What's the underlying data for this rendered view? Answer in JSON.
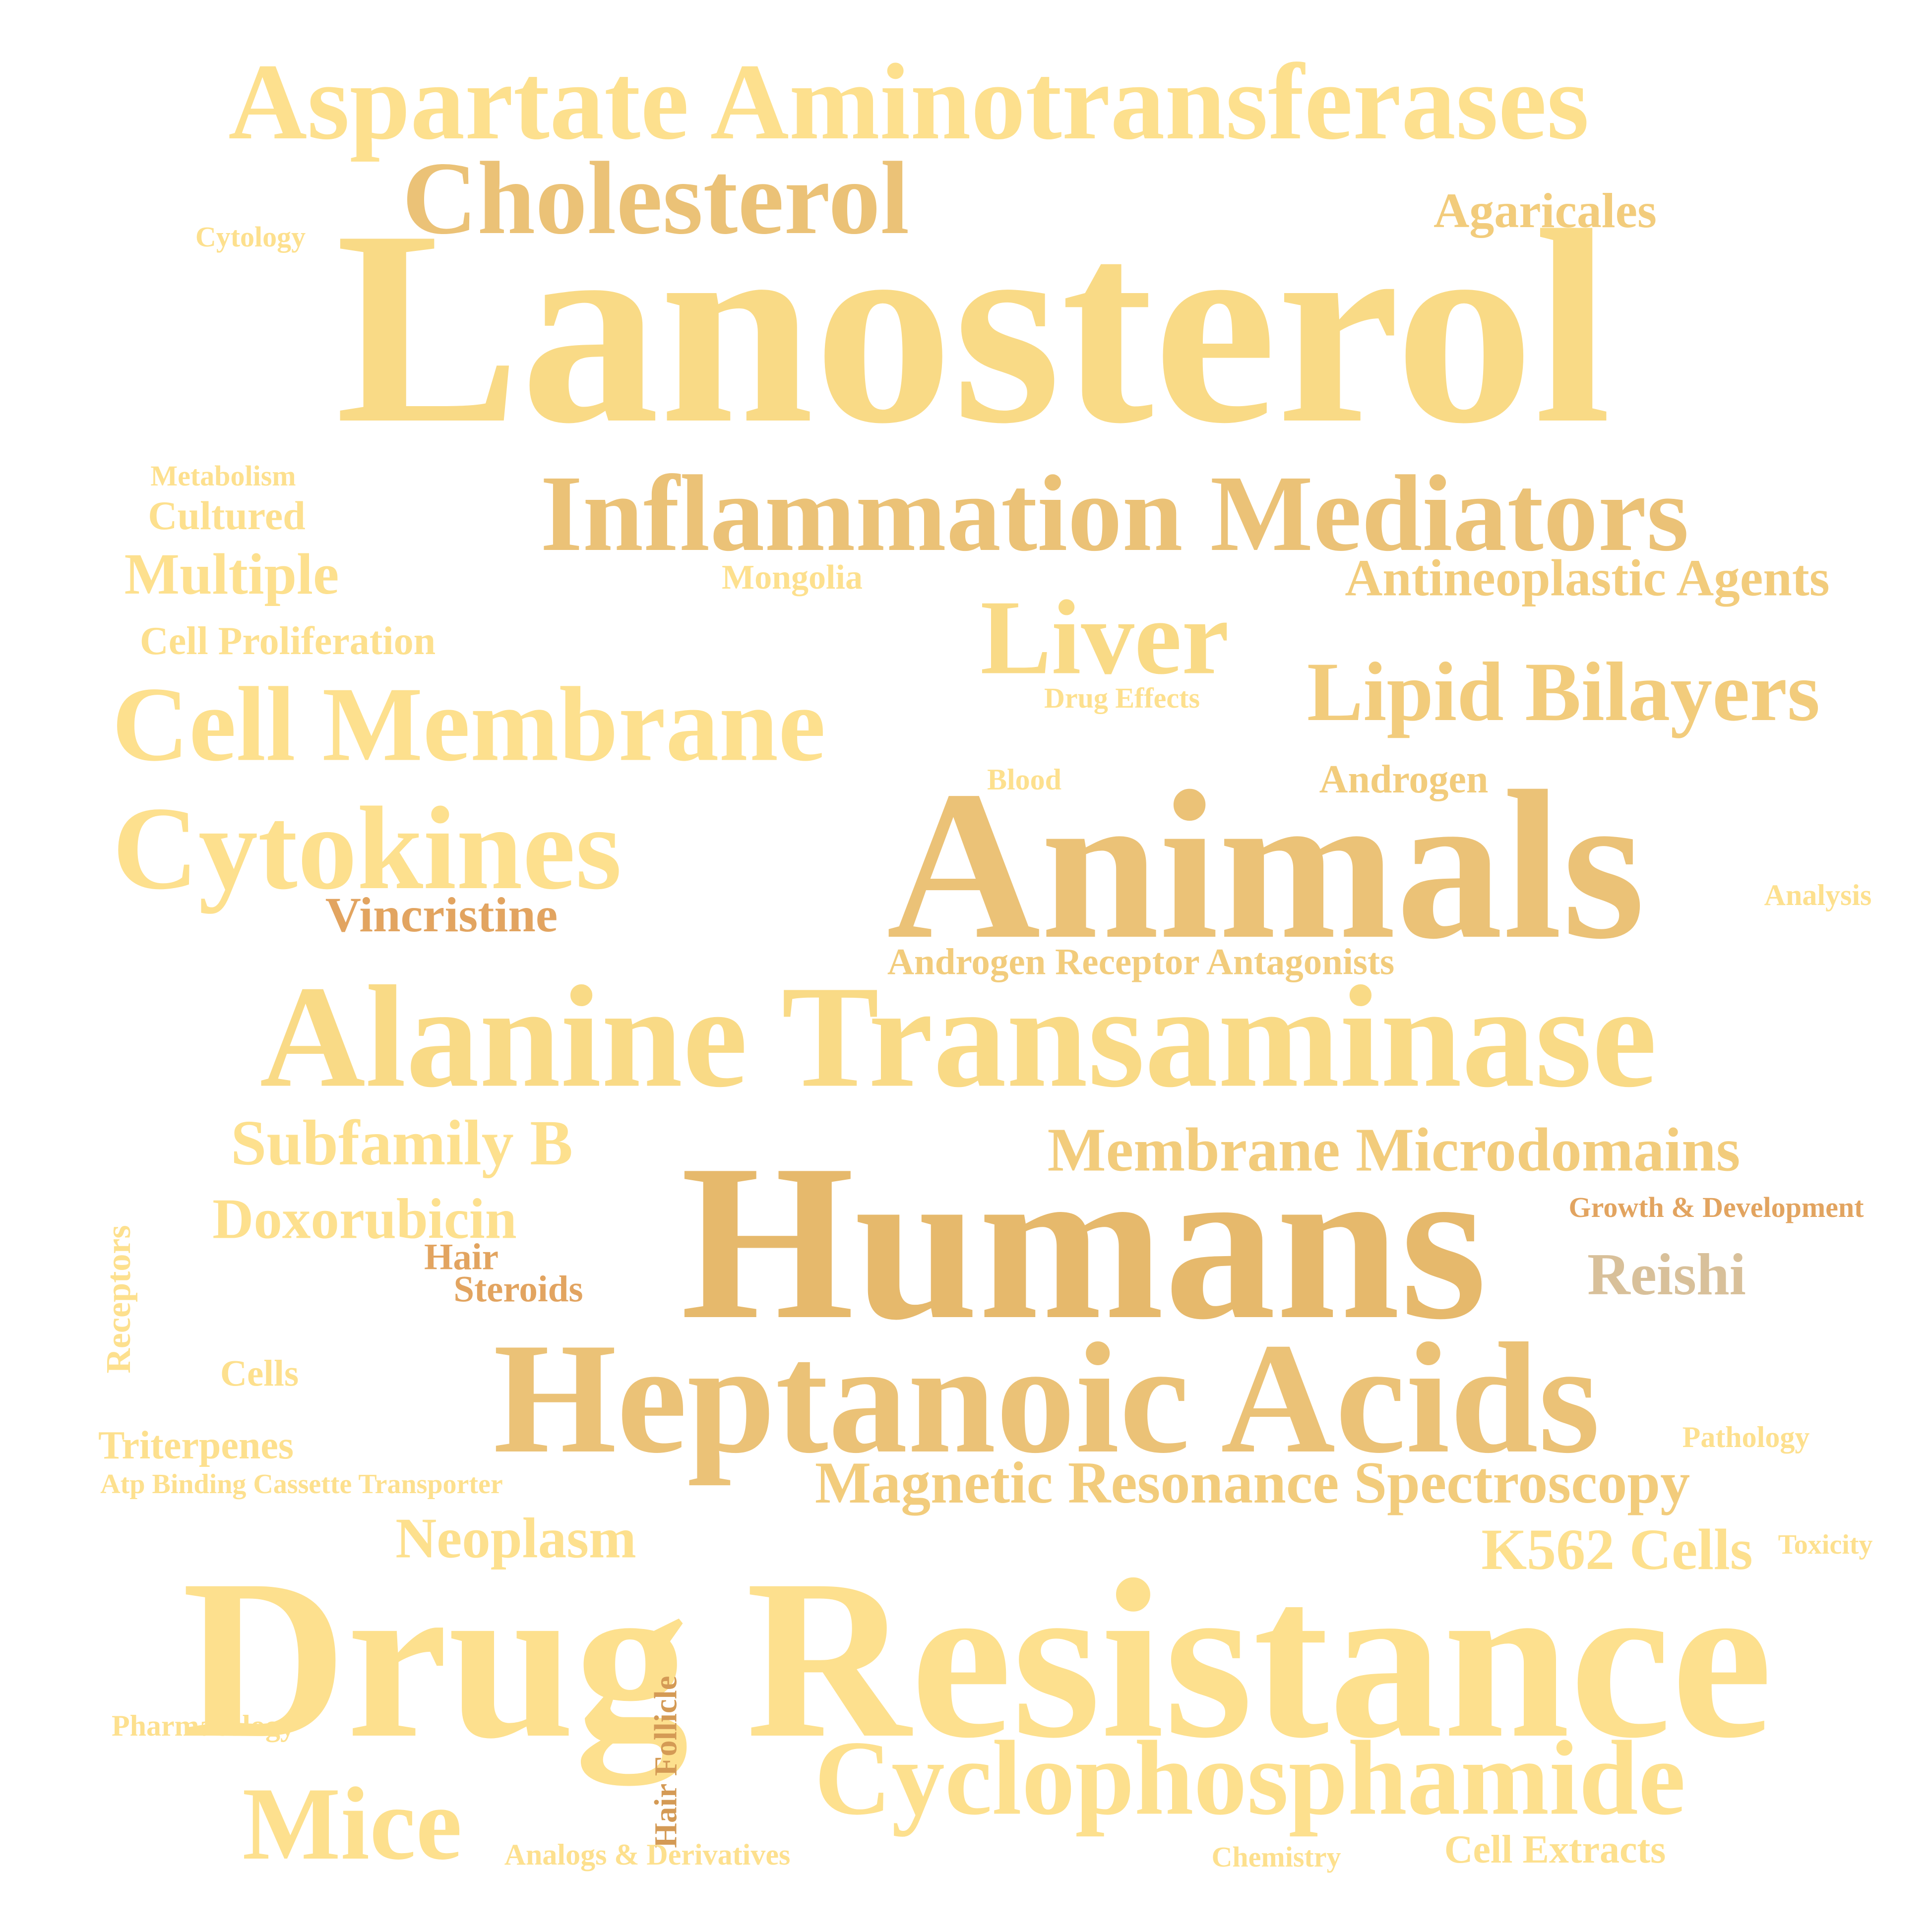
{
  "colors": {
    "pale": "#fde08e",
    "light": "#f9da86",
    "mid": "#f2cc7c",
    "tan": "#ebc277",
    "deep": "#e6b96c",
    "orange": "#e2a460",
    "brown": "#d49a55",
    "gray": "#d8c09a"
  },
  "words": [
    "Lanosterol",
    "Aspartate Aminotransferases",
    "Cholesterol",
    "Agaricales",
    "Cytology",
    "Metabolism",
    "Cultured",
    "Inflammation Mediators",
    "Multiple",
    "Mongolia",
    "Antineoplastic Agents",
    "Cell Proliferation",
    "Liver",
    "Lipid Bilayers",
    "Drug Effects",
    "Cell Membrane",
    "Blood",
    "Androgen",
    "Animals",
    "Cytokines",
    "Vincristine",
    "Analysis",
    "Androgen Receptor Antagonists",
    "Alanine Transaminase",
    "Subfamily B",
    "Membrane Microdomains",
    "Humans",
    "Doxorubicin",
    "Growth & Development",
    "Receptors",
    "Hair",
    "Steroids",
    "Reishi",
    "Heptanoic Acids",
    "Cells",
    "Triterpenes",
    "Pathology",
    "Atp Binding Cassette Transporter",
    "Magnetic Resonance Spectroscopy",
    "Neoplasm",
    "K562 Cells",
    "Toxicity",
    "Drug Resistance",
    "Hair Follicle",
    "Pharmacology",
    "Cyclophosphamide",
    "Mice",
    "Analogs & Derivatives",
    "Chemistry",
    "Cell Extracts"
  ]
}
